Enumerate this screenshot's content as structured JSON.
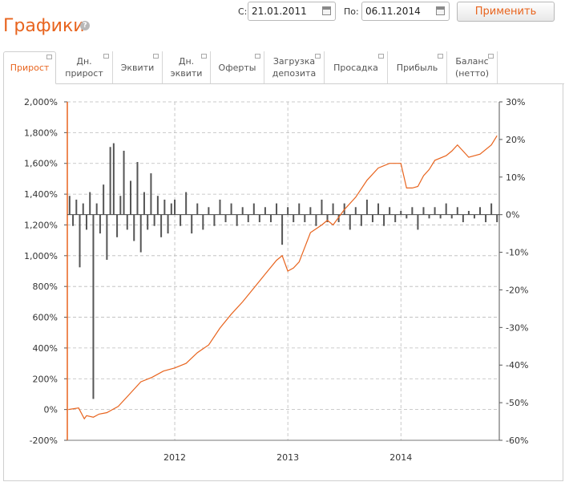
{
  "page": {
    "title": "Графики",
    "help_icon": "?"
  },
  "filters": {
    "from_label": "С:",
    "from_value": "21.01.2011",
    "to_label": "По:",
    "to_value": "06.11.2014",
    "apply_label": "Применить"
  },
  "tabs": [
    {
      "label": "Прирост",
      "active": true
    },
    {
      "label": "Дн.\nприрост",
      "active": false
    },
    {
      "label": "Эквити",
      "active": false
    },
    {
      "label": "Дн.\nэквити",
      "active": false
    },
    {
      "label": "Оферты",
      "active": false
    },
    {
      "label": "Загрузка\nдепозита",
      "active": false
    },
    {
      "label": "Просадка",
      "active": false
    },
    {
      "label": "Прибыль",
      "active": false
    },
    {
      "label": "Баланс\n(нетто)",
      "active": false
    }
  ],
  "colors": {
    "accent": "#e8641e",
    "growth_line": "#e8641e",
    "daily_bars": "#555555",
    "grid": "#bbbbbb"
  },
  "chart_data": {
    "type": "line",
    "x_ticks": [
      "2012",
      "2013",
      "2014"
    ],
    "y_left": {
      "ylim": [
        -200,
        2000
      ],
      "tick_labels": [
        "-200%",
        "0%",
        "200%",
        "400%",
        "600%",
        "800%",
        "1,000%",
        "1,200%",
        "1,400%",
        "1,600%",
        "1,800%",
        "2,000%"
      ]
    },
    "y_right": {
      "ylim": [
        -60,
        30
      ],
      "tick_labels": [
        "-60%",
        "-50%",
        "-40%",
        "-30%",
        "-20%",
        "-10%",
        "0%",
        "10%",
        "20%",
        "30%"
      ]
    },
    "series": [
      {
        "axis": "left",
        "style": "line",
        "x": [
          2011.06,
          2011.15,
          2011.2,
          2011.22,
          2011.28,
          2011.33,
          2011.4,
          2011.45,
          2011.5,
          2011.6,
          2011.7,
          2011.8,
          2011.9,
          2012.0,
          2012.1,
          2012.2,
          2012.3,
          2012.4,
          2012.5,
          2012.6,
          2012.7,
          2012.8,
          2012.9,
          2012.95,
          2013.0,
          2013.05,
          2013.1,
          2013.2,
          2013.3,
          2013.35,
          2013.4,
          2013.5,
          2013.6,
          2013.7,
          2013.8,
          2013.9,
          2014.0,
          2014.05,
          2014.1,
          2014.15,
          2014.2,
          2014.25,
          2014.3,
          2014.4,
          2014.45,
          2014.5,
          2014.6,
          2014.7,
          2014.8,
          2014.85
        ],
        "y": [
          0,
          10,
          -60,
          -40,
          -50,
          -30,
          -20,
          0,
          20,
          100,
          180,
          210,
          250,
          270,
          300,
          370,
          420,
          530,
          620,
          700,
          790,
          880,
          970,
          1000,
          900,
          920,
          960,
          1150,
          1200,
          1230,
          1200,
          1300,
          1380,
          1490,
          1570,
          1600,
          1600,
          1440,
          1440,
          1450,
          1520,
          1560,
          1620,
          1650,
          1680,
          1720,
          1640,
          1660,
          1720,
          1780
        ]
      },
      {
        "axis": "right",
        "style": "bars",
        "x": [
          2011.07,
          2011.1,
          2011.13,
          2011.16,
          2011.19,
          2011.22,
          2011.25,
          2011.28,
          2011.31,
          2011.34,
          2011.37,
          2011.4,
          2011.43,
          2011.46,
          2011.49,
          2011.52,
          2011.55,
          2011.58,
          2011.61,
          2011.64,
          2011.67,
          2011.7,
          2011.73,
          2011.76,
          2011.79,
          2011.82,
          2011.85,
          2011.88,
          2011.91,
          2011.94,
          2011.97,
          2012.0,
          2012.05,
          2012.1,
          2012.15,
          2012.2,
          2012.25,
          2012.3,
          2012.35,
          2012.4,
          2012.45,
          2012.5,
          2012.55,
          2012.6,
          2012.65,
          2012.7,
          2012.75,
          2012.8,
          2012.85,
          2012.9,
          2012.95,
          2013.0,
          2013.05,
          2013.1,
          2013.15,
          2013.2,
          2013.25,
          2013.3,
          2013.35,
          2013.4,
          2013.45,
          2013.5,
          2013.55,
          2013.6,
          2013.65,
          2013.7,
          2013.75,
          2013.8,
          2013.85,
          2013.9,
          2013.95,
          2014.0,
          2014.05,
          2014.1,
          2014.15,
          2014.2,
          2014.25,
          2014.3,
          2014.35,
          2014.4,
          2014.45,
          2014.5,
          2014.55,
          2014.6,
          2014.65,
          2014.7,
          2014.75,
          2014.8,
          2014.85
        ],
        "y": [
          5,
          -3,
          4,
          -14,
          3,
          -4,
          6,
          -49,
          3,
          -5,
          8,
          -12,
          18,
          19,
          -6,
          5,
          17,
          -4,
          9,
          -7,
          14,
          -10,
          6,
          -4,
          11,
          -3,
          5,
          -6,
          4,
          -5,
          3,
          4,
          -3,
          6,
          -5,
          3,
          -4,
          2,
          -3,
          4,
          -2,
          3,
          -3,
          2,
          -2,
          3,
          -2,
          2,
          -2,
          3,
          -8,
          2,
          -2,
          3,
          -2,
          2,
          -3,
          4,
          -2,
          3,
          -2,
          3,
          -4,
          2,
          -3,
          4,
          -2,
          3,
          -3,
          2,
          -2,
          1,
          -1,
          2,
          -4,
          2,
          -1,
          2,
          -1,
          3,
          -1,
          2,
          -2,
          1,
          -1,
          2,
          -2,
          3,
          -2
        ]
      }
    ]
  }
}
